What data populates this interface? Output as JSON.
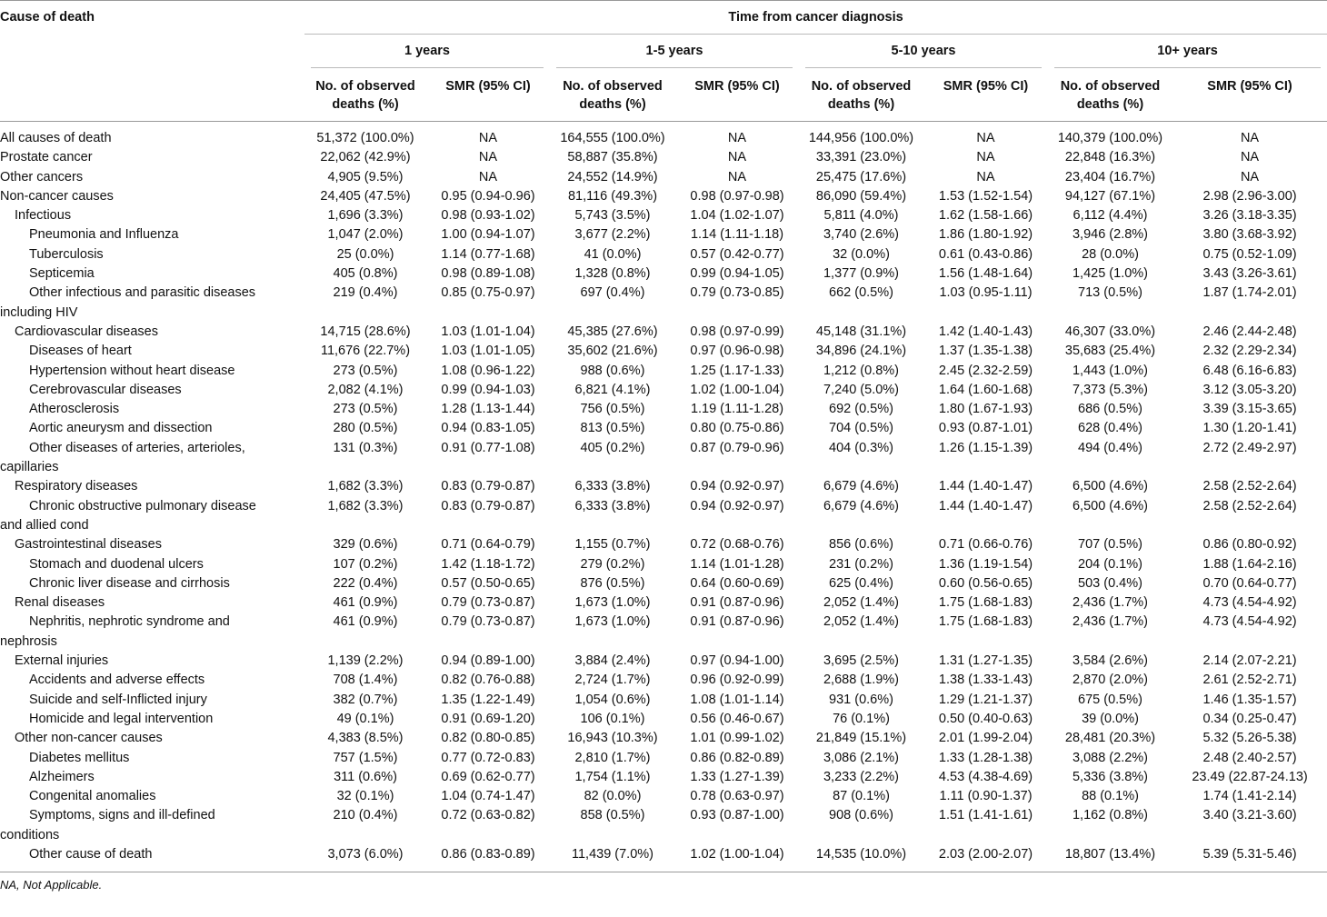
{
  "header": {
    "cause": "Cause of death",
    "time": "Time from cancer diagnosis",
    "groups": [
      "1 years",
      "1-5 years",
      "5-10 years",
      "10+ years"
    ],
    "subheaders": [
      "No. of observed deaths (%)",
      "SMR (95% CI)"
    ]
  },
  "table": {
    "rows": [
      {
        "label": "All causes of death",
        "cells": [
          "51,372 (100.0%)",
          "NA",
          "164,555 (100.0%)",
          "NA",
          "144,956 (100.0%)",
          "NA",
          "140,379 (100.0%)",
          "NA"
        ]
      },
      {
        "label": "Prostate cancer",
        "cells": [
          "22,062 (42.9%)",
          "NA",
          "58,887 (35.8%)",
          "NA",
          "33,391 (23.0%)",
          "NA",
          "22,848 (16.3%)",
          "NA"
        ]
      },
      {
        "label": "Other cancers",
        "cells": [
          "4,905 (9.5%)",
          "NA",
          "24,552 (14.9%)",
          "NA",
          "25,475 (17.6%)",
          "NA",
          "23,404 (16.7%)",
          "NA"
        ]
      },
      {
        "label": "Non-cancer causes",
        "cells": [
          "24,405 (47.5%)",
          "0.95 (0.94-0.96)",
          "81,116 (49.3%)",
          "0.98 (0.97-0.98)",
          "86,090 (59.4%)",
          "1.53 (1.52-1.54)",
          "94,127 (67.1%)",
          "2.98 (2.96-3.00)"
        ]
      },
      {
        "label": "Infectious",
        "cells": [
          "1,696 (3.3%)",
          "0.98 (0.93-1.02)",
          "5,743 (3.5%)",
          "1.04 (1.02-1.07)",
          "5,811 (4.0%)",
          "1.62 (1.58-1.66)",
          "6,112 (4.4%)",
          "3.26 (3.18-3.35)"
        ]
      },
      {
        "label": "Pneumonia and Influenza",
        "cells": [
          "1,047 (2.0%)",
          "1.00 (0.94-1.07)",
          "3,677 (2.2%)",
          "1.14 (1.11-1.18)",
          "3,740 (2.6%)",
          "1.86 (1.80-1.92)",
          "3,946 (2.8%)",
          "3.80 (3.68-3.92)"
        ]
      },
      {
        "label": "Tuberculosis",
        "cells": [
          "25 (0.0%)",
          "1.14 (0.77-1.68)",
          "41 (0.0%)",
          "0.57 (0.42-0.77)",
          "32 (0.0%)",
          "0.61 (0.43-0.86)",
          "28 (0.0%)",
          "0.75 (0.52-1.09)"
        ]
      },
      {
        "label": "Septicemia",
        "cells": [
          "405 (0.8%)",
          "0.98 (0.89-1.08)",
          "1,328 (0.8%)",
          "0.99 (0.94-1.05)",
          "1,377 (0.9%)",
          "1.56 (1.48-1.64)",
          "1,425 (1.0%)",
          "3.43 (3.26-3.61)"
        ]
      },
      {
        "label": "Other infectious and parasitic diseases including HIV",
        "cells": [
          "219 (0.4%)",
          "0.85 (0.75-0.97)",
          "697 (0.4%)",
          "0.79 (0.73-0.85)",
          "662 (0.5%)",
          "1.03 (0.95-1.11)",
          "713 (0.5%)",
          "1.87 (1.74-2.01)"
        ]
      },
      {
        "label": "Cardiovascular diseases",
        "cells": [
          "14,715 (28.6%)",
          "1.03 (1.01-1.04)",
          "45,385 (27.6%)",
          "0.98 (0.97-0.99)",
          "45,148 (31.1%)",
          "1.42 (1.40-1.43)",
          "46,307 (33.0%)",
          "2.46 (2.44-2.48)"
        ]
      },
      {
        "label": "Diseases of heart",
        "cells": [
          "11,676 (22.7%)",
          "1.03 (1.01-1.05)",
          "35,602 (21.6%)",
          "0.97 (0.96-0.98)",
          "34,896 (24.1%)",
          "1.37 (1.35-1.38)",
          "35,683 (25.4%)",
          "2.32 (2.29-2.34)"
        ]
      },
      {
        "label": "Hypertension without heart disease",
        "cells": [
          "273 (0.5%)",
          "1.08 (0.96-1.22)",
          "988 (0.6%)",
          "1.25 (1.17-1.33)",
          "1,212 (0.8%)",
          "2.45 (2.32-2.59)",
          "1,443 (1.0%)",
          "6.48 (6.16-6.83)"
        ]
      },
      {
        "label": "Cerebrovascular diseases",
        "cells": [
          "2,082 (4.1%)",
          "0.99 (0.94-1.03)",
          "6,821 (4.1%)",
          "1.02 (1.00-1.04)",
          "7,240 (5.0%)",
          "1.64 (1.60-1.68)",
          "7,373 (5.3%)",
          "3.12 (3.05-3.20)"
        ]
      },
      {
        "label": "Atherosclerosis",
        "cells": [
          "273 (0.5%)",
          "1.28 (1.13-1.44)",
          "756 (0.5%)",
          "1.19 (1.11-1.28)",
          "692 (0.5%)",
          "1.80 (1.67-1.93)",
          "686 (0.5%)",
          "3.39 (3.15-3.65)"
        ]
      },
      {
        "label": "Aortic aneurysm and dissection",
        "cells": [
          "280 (0.5%)",
          "0.94 (0.83-1.05)",
          "813 (0.5%)",
          "0.80 (0.75-0.86)",
          "704 (0.5%)",
          "0.93 (0.87-1.01)",
          "628 (0.4%)",
          "1.30 (1.20-1.41)"
        ]
      },
      {
        "label": "Other diseases of arteries, arterioles, capillaries",
        "cells": [
          "131 (0.3%)",
          "0.91 (0.77-1.08)",
          "405 (0.2%)",
          "0.87 (0.79-0.96)",
          "404 (0.3%)",
          "1.26 (1.15-1.39)",
          "494 (0.4%)",
          "2.72 (2.49-2.97)"
        ]
      },
      {
        "label": "Respiratory diseases",
        "cells": [
          "1,682 (3.3%)",
          "0.83 (0.79-0.87)",
          "6,333 (3.8%)",
          "0.94 (0.92-0.97)",
          "6,679 (4.6%)",
          "1.44 (1.40-1.47)",
          "6,500 (4.6%)",
          "2.58 (2.52-2.64)"
        ]
      },
      {
        "label": "Chronic obstructive pulmonary disease and allied cond",
        "cells": [
          "1,682 (3.3%)",
          "0.83 (0.79-0.87)",
          "6,333 (3.8%)",
          "0.94 (0.92-0.97)",
          "6,679 (4.6%)",
          "1.44 (1.40-1.47)",
          "6,500 (4.6%)",
          "2.58 (2.52-2.64)"
        ]
      },
      {
        "label": "Gastrointestinal diseases",
        "cells": [
          "329 (0.6%)",
          "0.71 (0.64-0.79)",
          "1,155 (0.7%)",
          "0.72 (0.68-0.76)",
          "856 (0.6%)",
          "0.71 (0.66-0.76)",
          "707 (0.5%)",
          "0.86 (0.80-0.92)"
        ]
      },
      {
        "label": "Stomach and duodenal ulcers",
        "cells": [
          "107 (0.2%)",
          "1.42 (1.18-1.72)",
          "279 (0.2%)",
          "1.14 (1.01-1.28)",
          "231 (0.2%)",
          "1.36 (1.19-1.54)",
          "204 (0.1%)",
          "1.88 (1.64-2.16)"
        ]
      },
      {
        "label": "Chronic liver disease and cirrhosis",
        "cells": [
          "222 (0.4%)",
          "0.57 (0.50-0.65)",
          "876 (0.5%)",
          "0.64 (0.60-0.69)",
          "625 (0.4%)",
          "0.60 (0.56-0.65)",
          "503 (0.4%)",
          "0.70 (0.64-0.77)"
        ]
      },
      {
        "label": "Renal diseases",
        "cells": [
          "461 (0.9%)",
          "0.79 (0.73-0.87)",
          "1,673 (1.0%)",
          "0.91 (0.87-0.96)",
          "2,052 (1.4%)",
          "1.75 (1.68-1.83)",
          "2,436 (1.7%)",
          "4.73 (4.54-4.92)"
        ]
      },
      {
        "label": "Nephritis, nephrotic syndrome and nephrosis",
        "cells": [
          "461 (0.9%)",
          "0.79 (0.73-0.87)",
          "1,673 (1.0%)",
          "0.91 (0.87-0.96)",
          "2,052 (1.4%)",
          "1.75 (1.68-1.83)",
          "2,436 (1.7%)",
          "4.73 (4.54-4.92)"
        ]
      },
      {
        "label": "External injuries",
        "cells": [
          "1,139 (2.2%)",
          "0.94 (0.89-1.00)",
          "3,884 (2.4%)",
          "0.97 (0.94-1.00)",
          "3,695 (2.5%)",
          "1.31 (1.27-1.35)",
          "3,584 (2.6%)",
          "2.14 (2.07-2.21)"
        ]
      },
      {
        "label": "Accidents and adverse effects",
        "cells": [
          "708 (1.4%)",
          "0.82 (0.76-0.88)",
          "2,724 (1.7%)",
          "0.96 (0.92-0.99)",
          "2,688 (1.9%)",
          "1.38 (1.33-1.43)",
          "2,870 (2.0%)",
          "2.61 (2.52-2.71)"
        ]
      },
      {
        "label": "Suicide and self-Inflicted injury",
        "cells": [
          "382 (0.7%)",
          "1.35 (1.22-1.49)",
          "1,054 (0.6%)",
          "1.08 (1.01-1.14)",
          "931 (0.6%)",
          "1.29 (1.21-1.37)",
          "675 (0.5%)",
          "1.46 (1.35-1.57)"
        ]
      },
      {
        "label": "Homicide and legal intervention",
        "cells": [
          "49 (0.1%)",
          "0.91 (0.69-1.20)",
          "106 (0.1%)",
          "0.56 (0.46-0.67)",
          "76 (0.1%)",
          "0.50 (0.40-0.63)",
          "39 (0.0%)",
          "0.34 (0.25-0.47)"
        ]
      },
      {
        "label": "Other non-cancer causes",
        "cells": [
          "4,383 (8.5%)",
          "0.82 (0.80-0.85)",
          "16,943 (10.3%)",
          "1.01 (0.99-1.02)",
          "21,849 (15.1%)",
          "2.01 (1.99-2.04)",
          "28,481 (20.3%)",
          "5.32 (5.26-5.38)"
        ]
      },
      {
        "label": "Diabetes mellitus",
        "cells": [
          "757 (1.5%)",
          "0.77 (0.72-0.83)",
          "2,810 (1.7%)",
          "0.86 (0.82-0.89)",
          "3,086 (2.1%)",
          "1.33 (1.28-1.38)",
          "3,088 (2.2%)",
          "2.48 (2.40-2.57)"
        ]
      },
      {
        "label": "Alzheimers",
        "cells": [
          "311 (0.6%)",
          "0.69 (0.62-0.77)",
          "1,754 (1.1%)",
          "1.33 (1.27-1.39)",
          "3,233 (2.2%)",
          "4.53 (4.38-4.69)",
          "5,336 (3.8%)",
          "23.49 (22.87-24.13)"
        ]
      },
      {
        "label": "Congenital anomalies",
        "cells": [
          "32 (0.1%)",
          "1.04 (0.74-1.47)",
          "82 (0.0%)",
          "0.78 (0.63-0.97)",
          "87 (0.1%)",
          "1.11 (0.90-1.37)",
          "88 (0.1%)",
          "1.74 (1.41-2.14)"
        ]
      },
      {
        "label": "Symptoms, signs and ill-defined conditions",
        "cells": [
          "210 (0.4%)",
          "0.72 (0.63-0.82)",
          "858 (0.5%)",
          "0.93 (0.87-1.00)",
          "908 (0.6%)",
          "1.51 (1.41-1.61)",
          "1,162 (0.8%)",
          "3.40 (3.21-3.60)"
        ]
      },
      {
        "label": "Other cause of death",
        "cells": [
          "3,073 (6.0%)",
          "0.86 (0.83-0.89)",
          "11,439 (7.0%)",
          "1.02 (1.00-1.04)",
          "14,535 (10.0%)",
          "2.03 (2.00-2.07)",
          "18,807 (13.4%)",
          "5.39 (5.31-5.46)"
        ]
      }
    ]
  },
  "footnote": "NA, Not Applicable."
}
